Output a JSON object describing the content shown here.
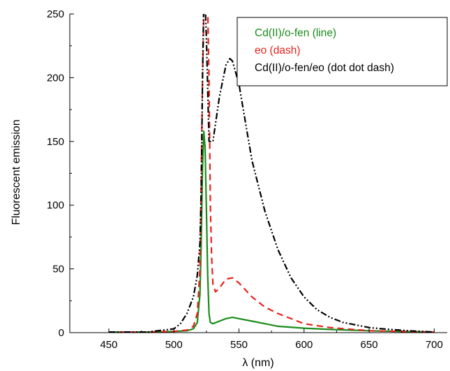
{
  "chart_data": {
    "type": "line",
    "xlabel": "λ (nm)",
    "ylabel": "Fluorescent emission",
    "xlim": [
      420,
      710
    ],
    "ylim": [
      0,
      250
    ],
    "xticks": [
      450,
      500,
      550,
      600,
      650,
      700
    ],
    "yticks": [
      0,
      50,
      100,
      150,
      200,
      250
    ],
    "grid": false,
    "legend_position": "top-right",
    "series": [
      {
        "name": "Cd(II)/o-fen (line)",
        "color": "#1a8c1a",
        "style": "solid",
        "x": [
          450,
          480,
          500,
          510,
          515,
          518,
          520,
          521,
          522,
          523,
          524,
          525,
          526,
          527,
          528,
          530,
          535,
          540,
          545,
          550,
          560,
          570,
          580,
          600,
          620,
          650,
          680,
          700
        ],
        "y": [
          0.5,
          0.5,
          1,
          1.5,
          3,
          8,
          30,
          70,
          130,
          158,
          145,
          95,
          45,
          15,
          8,
          7,
          9,
          11,
          12,
          11,
          9,
          7,
          5,
          3.5,
          2.5,
          1.5,
          0.8,
          0.5
        ]
      },
      {
        "name": "eo (dash)",
        "color": "#e8211c",
        "style": "dashed",
        "x": [
          450,
          480,
          500,
          510,
          515,
          518,
          520,
          521,
          522,
          523,
          524,
          525,
          526,
          527,
          528,
          529,
          530,
          532,
          535,
          540,
          545,
          550,
          560,
          570,
          580,
          600,
          620,
          650,
          680,
          700
        ],
        "y": [
          0.5,
          0.5,
          1,
          2,
          5,
          15,
          50,
          120,
          200,
          250,
          260,
          260,
          255,
          200,
          100,
          60,
          38,
          32,
          35,
          42,
          43,
          39,
          28,
          20,
          15,
          7,
          4,
          1.5,
          0.8,
          0.5
        ]
      },
      {
        "name": "Cd(II)/o-fen/eo (dot dot dash)",
        "color": "#000000",
        "style": "dash-dot-dot",
        "x": [
          450,
          480,
          500,
          505,
          510,
          515,
          518,
          520,
          521,
          522,
          523,
          524,
          525,
          527,
          530,
          535,
          540,
          543,
          545,
          550,
          555,
          560,
          570,
          580,
          590,
          600,
          610,
          620,
          630,
          640,
          650,
          660,
          680,
          700
        ],
        "y": [
          0.5,
          0.5,
          3,
          7,
          15,
          28,
          45,
          70,
          110,
          200,
          260,
          260,
          230,
          150,
          150,
          185,
          210,
          215,
          213,
          195,
          165,
          135,
          95,
          65,
          43,
          28,
          18,
          12,
          8,
          6,
          4,
          3,
          1.5,
          0.5
        ]
      }
    ]
  }
}
